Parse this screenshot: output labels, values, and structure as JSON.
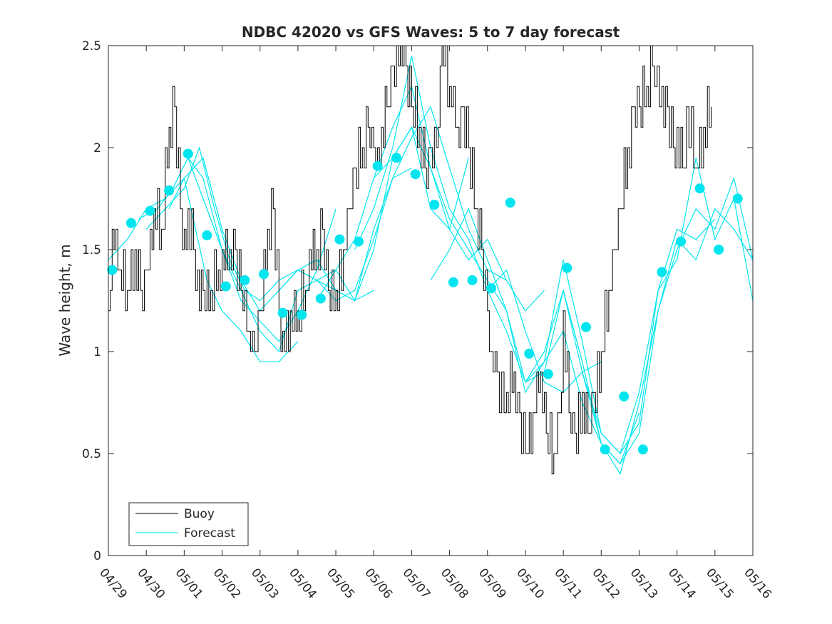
{
  "chart_data": {
    "type": "line",
    "title": "NDBC 42020 vs GFS Waves: 5 to 7 day forecast",
    "xlabel": "",
    "ylabel": "Wave height, m",
    "xlim": [
      0,
      17
    ],
    "ylim": [
      0,
      2.5
    ],
    "x_ticks": [
      0,
      1,
      2,
      3,
      4,
      5,
      6,
      7,
      8,
      9,
      10,
      11,
      12,
      13,
      14,
      15,
      16,
      17
    ],
    "x_tick_labels": [
      "04/29",
      "04/30",
      "05/01",
      "05/02",
      "05/03",
      "05/04",
      "05/05",
      "05/06",
      "05/07",
      "05/08",
      "05/09",
      "05/10",
      "05/11",
      "05/12",
      "05/13",
      "05/14",
      "05/15",
      "05/16"
    ],
    "y_ticks": [
      0,
      0.5,
      1,
      1.5,
      2,
      2.5
    ],
    "y_tick_labels": [
      "0",
      "0.5",
      "1",
      "1.5",
      "2",
      "2.5"
    ],
    "grid": false,
    "legend_position": "bottom-left",
    "legend": [
      "Buoy",
      "Forecast"
    ],
    "colors": {
      "buoy": "#000000",
      "forecast": "#00e5ee"
    },
    "buoy": {
      "name": "Buoy",
      "x": [
        0.0,
        0.1,
        0.2,
        0.3,
        0.5,
        0.7,
        0.85,
        1.0,
        1.1,
        1.2,
        1.4,
        1.6,
        1.75,
        1.9,
        2.0,
        2.1,
        2.25,
        2.35,
        2.5,
        2.7,
        2.9,
        3.0,
        3.2,
        3.35,
        3.5,
        3.7,
        3.85,
        4.0,
        4.2,
        4.35,
        4.5,
        4.6,
        4.8,
        5.0,
        5.2,
        5.3,
        5.5,
        5.65,
        5.8,
        6.0,
        6.2,
        6.35,
        6.5,
        6.7,
        6.85,
        7.0,
        7.1,
        7.2,
        7.35,
        7.5,
        7.7,
        7.85,
        8.0,
        8.2,
        8.35,
        8.5,
        8.65,
        8.8,
        9.0,
        9.2,
        9.35,
        9.5,
        9.7,
        9.85,
        10.0,
        10.1,
        10.25,
        10.5,
        10.7,
        10.85,
        11.0,
        11.2,
        11.4,
        11.55,
        11.75,
        11.9,
        12.0,
        12.15,
        12.3,
        12.5,
        12.65,
        12.8,
        13.0,
        13.2,
        13.35,
        13.5,
        13.7,
        13.85,
        14.0,
        14.2,
        14.35,
        14.6,
        14.75,
        14.9,
        15.0,
        15.15,
        15.25,
        15.5,
        15.7,
        15.9
      ],
      "values": [
        1.2,
        1.6,
        1.6,
        1.4,
        1.3,
        1.5,
        1.3,
        1.35,
        1.6,
        1.7,
        1.6,
        2.1,
        2.2,
        1.7,
        1.6,
        1.7,
        1.5,
        1.35,
        1.25,
        1.3,
        1.4,
        1.5,
        1.5,
        1.45,
        1.3,
        1.1,
        1.0,
        1.2,
        1.6,
        1.7,
        1.2,
        1.1,
        1.15,
        1.2,
        1.3,
        1.5,
        1.45,
        1.6,
        1.3,
        1.25,
        1.5,
        1.7,
        1.9,
        2.0,
        2.1,
        2.0,
        1.95,
        2.1,
        2.2,
        2.4,
        2.5,
        2.4,
        2.2,
        2.1,
        1.9,
        1.95,
        2.0,
        2.5,
        2.3,
        2.1,
        2.15,
        2.0,
        1.7,
        1.5,
        1.2,
        1.0,
        0.85,
        0.8,
        0.9,
        0.65,
        0.5,
        0.7,
        0.9,
        0.6,
        0.5,
        0.65,
        1.2,
        0.7,
        0.6,
        0.75,
        0.6,
        0.75,
        1.0,
        1.3,
        1.5,
        1.7,
        2.0,
        2.15,
        2.2,
        2.3,
        2.4,
        2.25,
        2.2,
        2.0,
        2.1,
        1.9,
        2.2,
        1.9,
        2.1,
        2.2
      ]
    },
    "forecast_lines": [
      {
        "name": "Forecast",
        "x": [
          0.0,
          0.5,
          1.0,
          1.5,
          2.0,
          2.3,
          2.6,
          3.0,
          3.5,
          4.0,
          4.5,
          5.0
        ],
        "values": [
          1.45,
          1.55,
          1.7,
          1.75,
          1.85,
          1.6,
          1.35,
          1.2,
          1.1,
          0.95,
          0.95,
          1.05
        ]
      },
      {
        "name": "Forecast",
        "x": [
          0.8,
          1.3,
          1.7,
          2.1,
          2.5,
          3.0,
          3.5,
          4.0,
          4.5,
          5.0,
          5.5,
          6.0
        ],
        "values": [
          1.65,
          1.7,
          1.8,
          1.95,
          1.75,
          1.5,
          1.25,
          1.15,
          1.05,
          1.2,
          1.4,
          1.7
        ]
      },
      {
        "name": "Forecast",
        "x": [
          1.0,
          1.5,
          2.0,
          2.4,
          2.8,
          3.2,
          3.6,
          4.0,
          4.5,
          5.0,
          5.5,
          6.0,
          6.5,
          7.0
        ],
        "values": [
          1.6,
          1.7,
          1.8,
          2.0,
          1.7,
          1.45,
          1.3,
          1.25,
          1.35,
          1.4,
          1.45,
          1.3,
          1.25,
          1.3
        ]
      },
      {
        "name": "Forecast",
        "x": [
          1.6,
          2.0,
          2.5,
          3.0,
          3.5,
          4.0,
          4.5,
          5.0,
          5.5,
          6.0,
          6.5,
          7.0,
          7.5,
          8.0
        ],
        "values": [
          1.7,
          1.85,
          1.95,
          1.6,
          1.35,
          1.2,
          1.3,
          1.4,
          1.35,
          1.3,
          1.25,
          1.6,
          1.85,
          1.9
        ]
      },
      {
        "name": "Forecast",
        "x": [
          2.1,
          2.5,
          3.0,
          3.5,
          4.0,
          4.5,
          5.0,
          5.5,
          6.0,
          6.5,
          7.0,
          7.5,
          8.0,
          8.5,
          9.0,
          9.5
        ],
        "values": [
          1.95,
          1.85,
          1.5,
          1.3,
          1.1,
          1.0,
          1.3,
          1.35,
          1.4,
          1.25,
          1.5,
          1.95,
          2.1,
          1.7,
          1.6,
          1.95
        ]
      },
      {
        "name": "Forecast",
        "x": [
          4.5,
          5.0,
          5.5,
          6.0,
          6.5,
          7.0,
          7.5,
          8.0,
          8.5,
          9.0,
          9.5,
          10.0,
          10.5
        ],
        "values": [
          1.3,
          1.4,
          1.35,
          1.25,
          1.3,
          1.55,
          1.85,
          2.05,
          2.2,
          1.9,
          1.6,
          1.4,
          1.35
        ]
      },
      {
        "name": "Forecast",
        "x": [
          5.5,
          6.0,
          6.5,
          7.0,
          7.5,
          8.0,
          8.5,
          9.0,
          9.5,
          10.0,
          10.5,
          11.0,
          11.5
        ],
        "values": [
          1.25,
          1.4,
          1.55,
          1.85,
          1.95,
          2.1,
          1.9,
          1.6,
          1.45,
          1.55,
          1.35,
          1.2,
          1.3
        ]
      },
      {
        "name": "Forecast",
        "x": [
          6.5,
          7.0,
          7.5,
          8.0,
          8.5,
          9.0,
          9.5,
          10.0,
          10.5,
          11.0,
          11.5,
          12.0,
          12.5,
          13.0
        ],
        "values": [
          1.5,
          1.7,
          2.0,
          2.45,
          2.0,
          1.7,
          1.55,
          1.3,
          1.4,
          1.1,
          0.85,
          0.8,
          0.9,
          0.95
        ]
      },
      {
        "name": "Forecast",
        "x": [
          7.0,
          7.5,
          8.0,
          8.5,
          9.0,
          9.5,
          10.0,
          10.5,
          11.0,
          11.5,
          12.0,
          12.5,
          13.0,
          13.5,
          14.0
        ],
        "values": [
          1.85,
          2.1,
          2.3,
          1.9,
          1.65,
          1.5,
          1.35,
          1.2,
          0.8,
          0.95,
          1.1,
          0.75,
          0.55,
          0.45,
          0.7
        ]
      },
      {
        "name": "Forecast",
        "x": [
          8.5,
          9.0,
          9.5,
          10.0,
          10.5,
          11.0,
          11.5,
          12.0,
          12.5,
          13.0,
          13.5,
          14.0,
          14.5,
          15.0,
          15.5,
          16.0
        ],
        "values": [
          1.35,
          1.5,
          1.7,
          1.45,
          1.2,
          0.85,
          1.0,
          1.3,
          0.9,
          0.6,
          0.5,
          0.8,
          1.3,
          1.6,
          1.55,
          1.65
        ]
      },
      {
        "name": "Forecast",
        "x": [
          10.0,
          10.5,
          11.0,
          11.5,
          12.0,
          12.5,
          13.0,
          13.5,
          14.0,
          14.5,
          15.0,
          15.5,
          16.0,
          16.5,
          17.0
        ],
        "values": [
          1.3,
          1.1,
          0.85,
          0.9,
          1.3,
          0.95,
          0.55,
          0.45,
          0.6,
          1.2,
          1.55,
          1.45,
          1.7,
          1.6,
          1.45
        ]
      },
      {
        "name": "Forecast",
        "x": [
          11.0,
          11.5,
          12.0,
          12.5,
          13.0,
          13.5,
          14.0,
          14.5,
          15.0,
          15.5,
          16.0,
          16.5,
          17.0
        ],
        "values": [
          0.85,
          0.95,
          1.45,
          1.05,
          0.6,
          0.5,
          0.65,
          1.3,
          1.45,
          1.95,
          1.55,
          1.75,
          1.25
        ]
      },
      {
        "name": "Forecast",
        "x": [
          12.5,
          13.0,
          13.5,
          14.0,
          14.5,
          15.0,
          15.5,
          16.0,
          16.5,
          17.0
        ],
        "values": [
          0.9,
          0.55,
          0.4,
          0.75,
          1.2,
          1.5,
          1.7,
          1.6,
          1.85,
          1.45
        ]
      }
    ],
    "forecast_markers": {
      "x": [
        0.1,
        0.6,
        1.1,
        1.6,
        2.1,
        2.6,
        3.1,
        3.6,
        4.1,
        4.6,
        5.1,
        5.6,
        6.1,
        6.6,
        7.1,
        7.6,
        8.1,
        8.6,
        9.1,
        9.6,
        10.1,
        10.6,
        11.1,
        11.6,
        12.1,
        12.6,
        13.1,
        13.6,
        14.1,
        14.6,
        15.1,
        15.6,
        16.1,
        16.6
      ],
      "values": [
        1.4,
        1.63,
        1.69,
        1.79,
        1.97,
        1.57,
        1.32,
        1.35,
        1.38,
        1.19,
        1.18,
        1.26,
        1.55,
        1.54,
        1.91,
        1.95,
        1.87,
        1.72,
        1.34,
        1.35,
        1.31,
        1.73,
        0.99,
        0.89,
        1.41,
        1.12,
        0.52,
        0.78,
        0.52,
        1.39,
        1.54,
        1.8,
        1.5,
        1.75
      ]
    }
  }
}
